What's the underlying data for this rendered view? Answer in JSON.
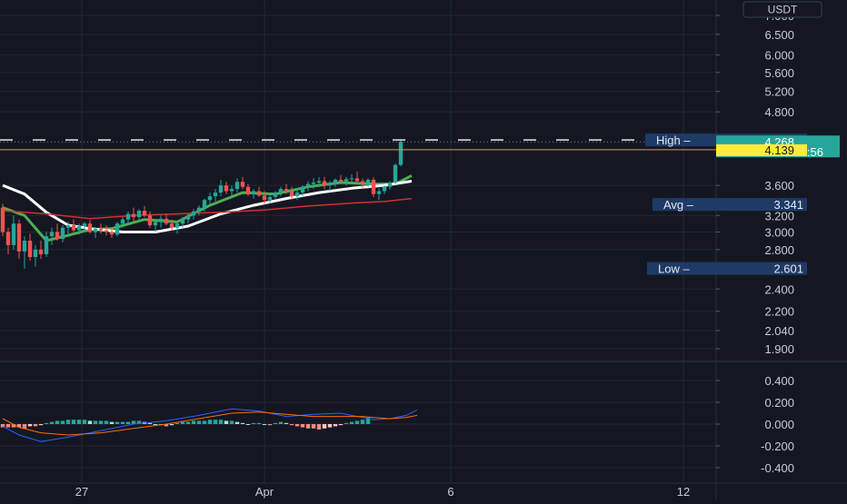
{
  "colors": {
    "background": "#141722",
    "grid": "#232735",
    "axis_text": "#c9ccd6",
    "bull": "#26a69a",
    "bear": "#ef5350",
    "ma_green": "#4caf50",
    "ma_white": "#ffffff",
    "ma_red": "#d32f2f",
    "macd_line": "#2962ff",
    "signal_line": "#ff6d00",
    "info_tag": "#1e3a66",
    "last_price_tag": "#26a69a",
    "prev_close_tag": "#ffeb3b"
  },
  "currency_label": "USDT",
  "chart_data": [
    {
      "type": "candlestick",
      "y_scale": "log",
      "ylim": [
        1.8,
        7.2
      ],
      "y_ticks": [
        "7.000",
        "6.500",
        "6.000",
        "5.600",
        "5.200",
        "4.800",
        "3.600",
        "3.200",
        "3.000",
        "2.800",
        "2.400",
        "2.200",
        "2.040",
        "1.900"
      ],
      "x_ticks": [
        "27",
        "Apr",
        "6",
        "12"
      ],
      "grid": true,
      "candles": [
        [
          3.3,
          3.35,
          2.95,
          3.0
        ],
        [
          3.0,
          3.05,
          2.75,
          2.85
        ],
        [
          2.85,
          3.2,
          2.8,
          3.1
        ],
        [
          3.1,
          3.15,
          2.7,
          2.78
        ],
        [
          2.78,
          2.95,
          2.6,
          2.9
        ],
        [
          2.9,
          2.98,
          2.68,
          2.72
        ],
        [
          2.72,
          2.85,
          2.62,
          2.8
        ],
        [
          2.8,
          2.9,
          2.7,
          2.75
        ],
        [
          2.75,
          3.0,
          2.72,
          2.95
        ],
        [
          2.95,
          3.05,
          2.85,
          3.0
        ],
        [
          3.0,
          3.1,
          2.9,
          2.92
        ],
        [
          2.92,
          3.08,
          2.88,
          3.05
        ],
        [
          3.05,
          3.12,
          2.95,
          3.08
        ],
        [
          3.08,
          3.15,
          3.0,
          3.02
        ],
        [
          3.02,
          3.1,
          2.97,
          3.07
        ],
        [
          3.07,
          3.12,
          3.0,
          3.1
        ],
        [
          3.1,
          3.14,
          2.98,
          3.0
        ],
        [
          3.0,
          3.06,
          2.93,
          3.04
        ],
        [
          3.04,
          3.1,
          2.98,
          3.02
        ],
        [
          3.02,
          3.08,
          2.96,
          3.0
        ],
        [
          3.0,
          3.05,
          2.93,
          2.97
        ],
        [
          2.97,
          3.12,
          2.95,
          3.1
        ],
        [
          3.1,
          3.18,
          3.05,
          3.15
        ],
        [
          3.15,
          3.25,
          3.1,
          3.22
        ],
        [
          3.22,
          3.3,
          3.12,
          3.18
        ],
        [
          3.18,
          3.28,
          3.15,
          3.26
        ],
        [
          3.26,
          3.32,
          3.18,
          3.2
        ],
        [
          3.2,
          3.25,
          3.05,
          3.08
        ],
        [
          3.08,
          3.15,
          3.0,
          3.12
        ],
        [
          3.12,
          3.2,
          3.05,
          3.16
        ],
        [
          3.16,
          3.22,
          3.08,
          3.1
        ],
        [
          3.1,
          3.15,
          3.02,
          3.05
        ],
        [
          3.05,
          3.12,
          2.98,
          3.1
        ],
        [
          3.1,
          3.18,
          3.05,
          3.15
        ],
        [
          3.15,
          3.22,
          3.1,
          3.2
        ],
        [
          3.2,
          3.28,
          3.15,
          3.25
        ],
        [
          3.25,
          3.33,
          3.2,
          3.3
        ],
        [
          3.3,
          3.42,
          3.25,
          3.4
        ],
        [
          3.4,
          3.5,
          3.35,
          3.45
        ],
        [
          3.45,
          3.55,
          3.38,
          3.5
        ],
        [
          3.5,
          3.68,
          3.45,
          3.6
        ],
        [
          3.6,
          3.65,
          3.48,
          3.52
        ],
        [
          3.52,
          3.6,
          3.45,
          3.55
        ],
        [
          3.55,
          3.7,
          3.5,
          3.65
        ],
        [
          3.65,
          3.72,
          3.55,
          3.58
        ],
        [
          3.58,
          3.62,
          3.45,
          3.48
        ],
        [
          3.48,
          3.55,
          3.42,
          3.52
        ],
        [
          3.52,
          3.58,
          3.44,
          3.46
        ],
        [
          3.46,
          3.52,
          3.35,
          3.4
        ],
        [
          3.4,
          3.48,
          3.36,
          3.44
        ],
        [
          3.44,
          3.52,
          3.4,
          3.5
        ],
        [
          3.5,
          3.58,
          3.45,
          3.55
        ],
        [
          3.55,
          3.62,
          3.48,
          3.52
        ],
        [
          3.52,
          3.58,
          3.4,
          3.45
        ],
        [
          3.45,
          3.55,
          3.4,
          3.5
        ],
        [
          3.5,
          3.6,
          3.45,
          3.58
        ],
        [
          3.58,
          3.66,
          3.52,
          3.62
        ],
        [
          3.62,
          3.7,
          3.55,
          3.64
        ],
        [
          3.64,
          3.72,
          3.58,
          3.66
        ],
        [
          3.66,
          3.72,
          3.55,
          3.6
        ],
        [
          3.6,
          3.66,
          3.52,
          3.62
        ],
        [
          3.62,
          3.7,
          3.58,
          3.68
        ],
        [
          3.68,
          3.75,
          3.62,
          3.66
        ],
        [
          3.66,
          3.72,
          3.6,
          3.69
        ],
        [
          3.69,
          3.76,
          3.64,
          3.7
        ],
        [
          3.7,
          3.8,
          3.65,
          3.66
        ],
        [
          3.66,
          3.7,
          3.56,
          3.62
        ],
        [
          3.62,
          3.7,
          3.58,
          3.68
        ],
        [
          3.68,
          3.72,
          3.44,
          3.48
        ],
        [
          3.48,
          3.56,
          3.4,
          3.52
        ],
        [
          3.52,
          3.6,
          3.48,
          3.58
        ],
        [
          3.58,
          3.66,
          3.54,
          3.64
        ],
        [
          3.64,
          3.92,
          3.62,
          3.9
        ],
        [
          3.9,
          4.3,
          3.88,
          4.268
        ]
      ],
      "moving_averages": [
        {
          "color": "green",
          "values": [
            [
              0,
              3.3
            ],
            [
              4,
              3.2
            ],
            [
              8,
              2.9
            ],
            [
              12,
              2.96
            ],
            [
              16,
              3.03
            ],
            [
              20,
              3.04
            ],
            [
              26,
              3.15
            ],
            [
              32,
              3.12
            ],
            [
              38,
              3.33
            ],
            [
              44,
              3.5
            ],
            [
              50,
              3.48
            ],
            [
              56,
              3.58
            ],
            [
              62,
              3.64
            ],
            [
              68,
              3.62
            ],
            [
              72,
              3.62
            ],
            [
              75,
              3.74
            ]
          ]
        },
        {
          "color": "white",
          "values": [
            [
              0,
              3.6
            ],
            [
              4,
              3.48
            ],
            [
              8,
              3.24
            ],
            [
              12,
              3.08
            ],
            [
              16,
              3.04
            ],
            [
              22,
              3.0
            ],
            [
              28,
              3.0
            ],
            [
              34,
              3.07
            ],
            [
              40,
              3.22
            ],
            [
              46,
              3.33
            ],
            [
              52,
              3.42
            ],
            [
              58,
              3.5
            ],
            [
              64,
              3.56
            ],
            [
              70,
              3.6
            ],
            [
              75,
              3.66
            ]
          ]
        },
        {
          "color": "red",
          "values": [
            [
              0,
              3.26
            ],
            [
              8,
              3.22
            ],
            [
              16,
              3.16
            ],
            [
              24,
              3.2
            ],
            [
              32,
              3.22
            ],
            [
              40,
              3.24
            ],
            [
              48,
              3.27
            ],
            [
              56,
              3.32
            ],
            [
              64,
              3.36
            ],
            [
              70,
              3.38
            ],
            [
              75,
              3.42
            ]
          ]
        }
      ],
      "levels": {
        "high": {
          "label": "High",
          "value": "4.300"
        },
        "last": {
          "value": "4.268",
          "countdown": "02:51:56"
        },
        "prev_close": {
          "value": "4.139"
        },
        "avg": {
          "label": "Avg",
          "value": "3.341"
        },
        "low": {
          "label": "Low",
          "value": "2.601"
        }
      }
    },
    {
      "type": "macd",
      "ylim": [
        -0.48,
        0.48
      ],
      "y_ticks": [
        "0.400",
        "0.200",
        "0.000",
        "-0.200",
        "-0.400"
      ],
      "histogram": [
        -0.03,
        -0.03,
        -0.03,
        -0.03,
        -0.04,
        -0.02,
        -0.02,
        -0.01,
        0.01,
        0.02,
        0.03,
        0.03,
        0.04,
        0.04,
        0.04,
        0.04,
        0.03,
        0.03,
        0.03,
        0.03,
        0.02,
        0.02,
        0.02,
        0.02,
        0.03,
        0.03,
        0.02,
        0.01,
        0.0,
        -0.01,
        -0.02,
        -0.01,
        0.01,
        0.02,
        0.02,
        0.03,
        0.03,
        0.03,
        0.04,
        0.04,
        0.04,
        0.03,
        0.03,
        0.02,
        0.01,
        0.0,
        0.01,
        0.01,
        0.0,
        -0.01,
        0.01,
        0.02,
        0.01,
        -0.01,
        -0.02,
        -0.03,
        -0.04,
        -0.04,
        -0.05,
        -0.04,
        -0.03,
        -0.02,
        -0.01,
        0.01,
        0.02,
        0.03,
        0.04,
        0.06
      ],
      "macd_line": [
        [
          0,
          -0.02
        ],
        [
          3,
          -0.1
        ],
        [
          7,
          -0.16
        ],
        [
          12,
          -0.12
        ],
        [
          18,
          -0.06
        ],
        [
          24,
          0.0
        ],
        [
          30,
          0.03
        ],
        [
          36,
          0.08
        ],
        [
          42,
          0.14
        ],
        [
          47,
          0.12
        ],
        [
          52,
          0.07
        ],
        [
          57,
          0.09
        ],
        [
          62,
          0.1
        ],
        [
          66,
          0.06
        ],
        [
          68,
          0.04
        ],
        [
          71,
          0.05
        ],
        [
          74,
          0.08
        ],
        [
          76,
          0.13
        ]
      ],
      "signal_line": [
        [
          0,
          0.05
        ],
        [
          3,
          -0.03
        ],
        [
          7,
          -0.08
        ],
        [
          12,
          -0.1
        ],
        [
          18,
          -0.08
        ],
        [
          24,
          -0.04
        ],
        [
          30,
          0.0
        ],
        [
          36,
          0.05
        ],
        [
          42,
          0.1
        ],
        [
          47,
          0.11
        ],
        [
          52,
          0.09
        ],
        [
          57,
          0.07
        ],
        [
          62,
          0.07
        ],
        [
          66,
          0.07
        ],
        [
          68,
          0.06
        ],
        [
          71,
          0.05
        ],
        [
          74,
          0.06
        ],
        [
          76,
          0.08
        ]
      ]
    }
  ]
}
